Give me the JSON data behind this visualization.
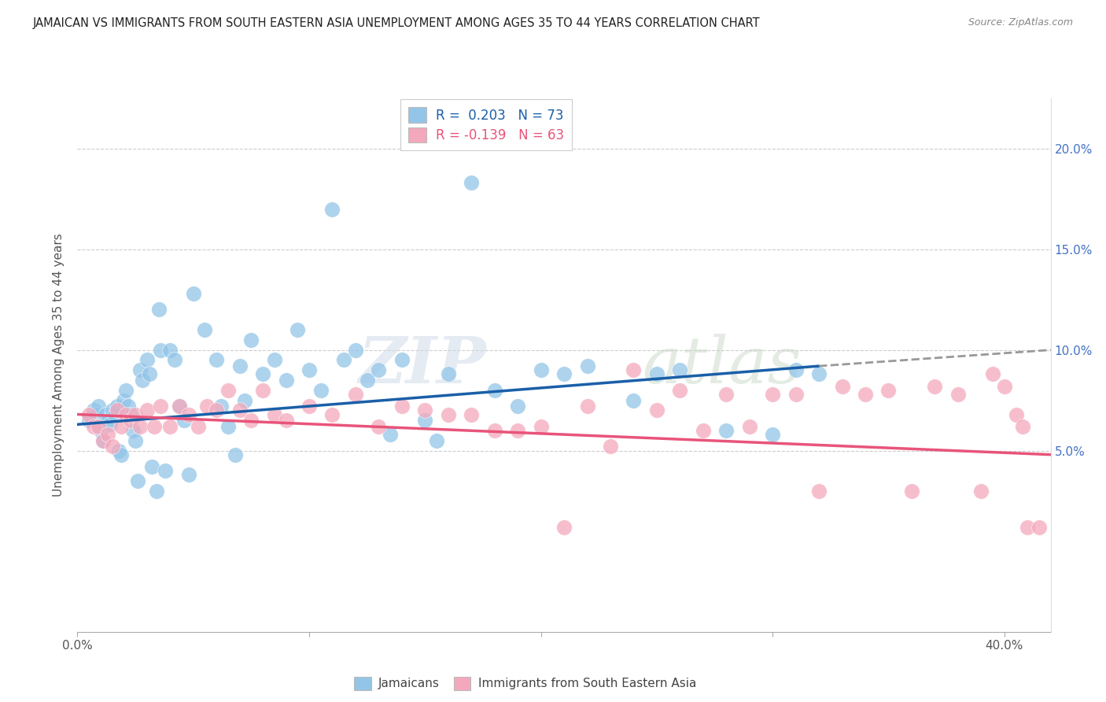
{
  "title": "JAMAICAN VS IMMIGRANTS FROM SOUTH EASTERN ASIA UNEMPLOYMENT AMONG AGES 35 TO 44 YEARS CORRELATION CHART",
  "source": "Source: ZipAtlas.com",
  "ylabel": "Unemployment Among Ages 35 to 44 years",
  "xlim": [
    0.0,
    0.42
  ],
  "ylim": [
    -0.04,
    0.225
  ],
  "blue_R": 0.203,
  "blue_N": 73,
  "pink_R": -0.139,
  "pink_N": 63,
  "blue_color": "#92c5e8",
  "pink_color": "#f4a8bc",
  "blue_line_color": "#1a5fa8",
  "pink_line_color": "#e8547a",
  "gray_dash_color": "#999999",
  "watermark_color": "#e0e8f0",
  "legend_label_blue": "Jamaicans",
  "legend_label_pink": "Immigrants from South Eastern Asia",
  "ytick_vals": [
    0.05,
    0.1,
    0.15,
    0.2
  ],
  "ytick_labels": [
    "5.0%",
    "10.0%",
    "15.0%",
    "20.0%"
  ],
  "xtick_vals": [
    0.0,
    0.1,
    0.2,
    0.3,
    0.4
  ],
  "blue_line_x0": 0.0,
  "blue_line_x_solid_end": 0.32,
  "blue_line_x_dash_end": 0.42,
  "blue_line_y0": 0.063,
  "blue_line_y_solid_end": 0.092,
  "blue_line_y_dash_end": 0.1,
  "pink_line_x0": 0.0,
  "pink_line_x_end": 0.42,
  "pink_line_y0": 0.068,
  "pink_line_y_end": 0.048,
  "blue_x": [
    0.005,
    0.007,
    0.008,
    0.009,
    0.01,
    0.011,
    0.012,
    0.013,
    0.014,
    0.015,
    0.016,
    0.017,
    0.018,
    0.019,
    0.02,
    0.021,
    0.022,
    0.023,
    0.024,
    0.025,
    0.026,
    0.027,
    0.028,
    0.03,
    0.031,
    0.032,
    0.034,
    0.035,
    0.036,
    0.038,
    0.04,
    0.042,
    0.044,
    0.046,
    0.048,
    0.05,
    0.055,
    0.06,
    0.062,
    0.065,
    0.068,
    0.07,
    0.072,
    0.075,
    0.08,
    0.085,
    0.09,
    0.095,
    0.1,
    0.105,
    0.11,
    0.115,
    0.12,
    0.125,
    0.13,
    0.135,
    0.14,
    0.15,
    0.155,
    0.16,
    0.17,
    0.18,
    0.19,
    0.2,
    0.21,
    0.22,
    0.24,
    0.25,
    0.26,
    0.28,
    0.3,
    0.31,
    0.32
  ],
  "blue_y": [
    0.065,
    0.07,
    0.068,
    0.072,
    0.06,
    0.055,
    0.068,
    0.065,
    0.063,
    0.07,
    0.068,
    0.072,
    0.05,
    0.048,
    0.075,
    0.08,
    0.072,
    0.068,
    0.06,
    0.055,
    0.035,
    0.09,
    0.085,
    0.095,
    0.088,
    0.042,
    0.03,
    0.12,
    0.1,
    0.04,
    0.1,
    0.095,
    0.072,
    0.065,
    0.038,
    0.128,
    0.11,
    0.095,
    0.072,
    0.062,
    0.048,
    0.092,
    0.075,
    0.105,
    0.088,
    0.095,
    0.085,
    0.11,
    0.09,
    0.08,
    0.17,
    0.095,
    0.1,
    0.085,
    0.09,
    0.058,
    0.095,
    0.065,
    0.055,
    0.088,
    0.183,
    0.08,
    0.072,
    0.09,
    0.088,
    0.092,
    0.075,
    0.088,
    0.09,
    0.06,
    0.058,
    0.09,
    0.088
  ],
  "pink_x": [
    0.005,
    0.007,
    0.009,
    0.011,
    0.013,
    0.015,
    0.017,
    0.019,
    0.021,
    0.023,
    0.025,
    0.027,
    0.03,
    0.033,
    0.036,
    0.04,
    0.044,
    0.048,
    0.052,
    0.056,
    0.06,
    0.065,
    0.07,
    0.075,
    0.08,
    0.085,
    0.09,
    0.1,
    0.11,
    0.12,
    0.13,
    0.14,
    0.15,
    0.16,
    0.17,
    0.18,
    0.19,
    0.2,
    0.21,
    0.22,
    0.23,
    0.24,
    0.25,
    0.26,
    0.27,
    0.28,
    0.29,
    0.3,
    0.31,
    0.32,
    0.33,
    0.34,
    0.35,
    0.36,
    0.37,
    0.38,
    0.39,
    0.395,
    0.4,
    0.405,
    0.408,
    0.41,
    0.415
  ],
  "pink_y": [
    0.068,
    0.062,
    0.062,
    0.055,
    0.058,
    0.052,
    0.07,
    0.062,
    0.068,
    0.065,
    0.068,
    0.062,
    0.07,
    0.062,
    0.072,
    0.062,
    0.072,
    0.068,
    0.062,
    0.072,
    0.07,
    0.08,
    0.07,
    0.065,
    0.08,
    0.068,
    0.065,
    0.072,
    0.068,
    0.078,
    0.062,
    0.072,
    0.07,
    0.068,
    0.068,
    0.06,
    0.06,
    0.062,
    0.012,
    0.072,
    0.052,
    0.09,
    0.07,
    0.08,
    0.06,
    0.078,
    0.062,
    0.078,
    0.078,
    0.03,
    0.082,
    0.078,
    0.08,
    0.03,
    0.082,
    0.078,
    0.03,
    0.088,
    0.082,
    0.068,
    0.062,
    0.012,
    0.012
  ]
}
